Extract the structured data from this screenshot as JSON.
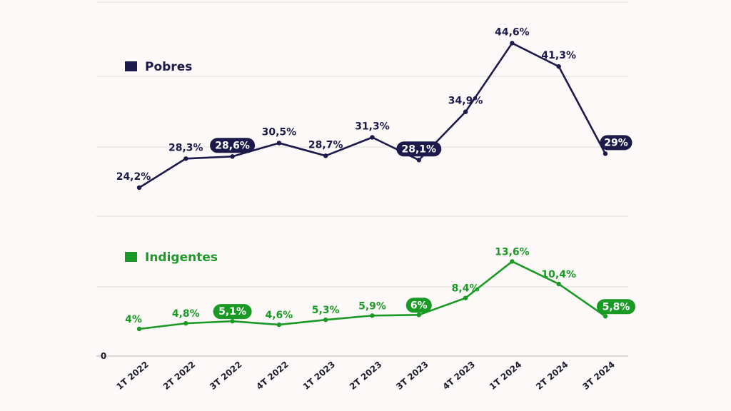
{
  "chart_data": {
    "type": "line",
    "categories": [
      "1T 2022",
      "2T 2022",
      "3T 2022",
      "4T 2022",
      "1T 2023",
      "2T 2023",
      "3T 2023",
      "4T 2023",
      "1T 2024",
      "2T 2024",
      "3T 2024"
    ],
    "series": [
      {
        "name": "Pobres",
        "color": "#1c1a4a",
        "values": [
          24.2,
          28.3,
          28.6,
          30.5,
          28.7,
          31.3,
          28.1,
          34.9,
          44.6,
          41.3,
          29.0
        ],
        "labels": [
          "24,2%",
          "28,3%",
          "28,6%",
          "30,5%",
          "28,7%",
          "31,3%",
          "28,1%",
          "34,9%",
          "44,6%",
          "41,3%",
          "29%"
        ],
        "highlighted": [
          2,
          6,
          10
        ]
      },
      {
        "name": "Indigentes",
        "color": "#1a9a24",
        "values": [
          4.0,
          4.8,
          5.1,
          4.6,
          5.3,
          5.9,
          6.0,
          8.4,
          13.6,
          10.4,
          5.8
        ],
        "labels": [
          "4%",
          "4,8%",
          "5,1%",
          "4,6%",
          "5,3%",
          "5,9%",
          "6%",
          "8,4%",
          "13,6%",
          "10,4%",
          "5,8%"
        ],
        "highlighted": [
          2,
          6,
          10
        ]
      }
    ],
    "y_zero_label": "0",
    "legend_placement": "left, above each series",
    "grid": true
  }
}
